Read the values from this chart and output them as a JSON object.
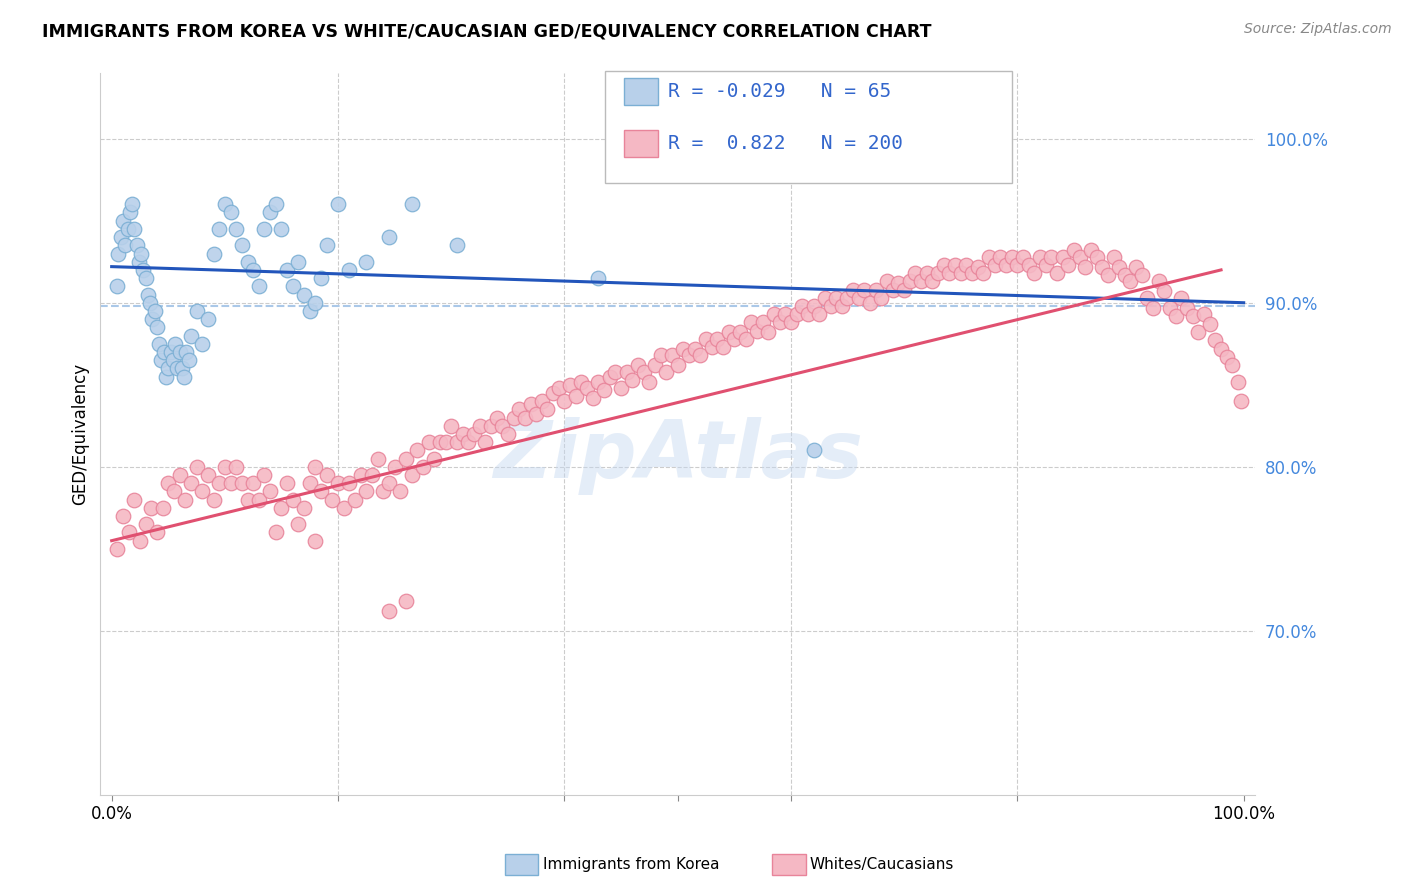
{
  "title": "IMMIGRANTS FROM KOREA VS WHITE/CAUCASIAN GED/EQUIVALENCY CORRELATION CHART",
  "source": "Source: ZipAtlas.com",
  "ylabel": "GED/Equivalency",
  "y_tick_labels": [
    "70.0%",
    "80.0%",
    "90.0%",
    "100.0%"
  ],
  "y_tick_values": [
    0.7,
    0.8,
    0.9,
    1.0
  ],
  "xlim": [
    -0.01,
    1.01
  ],
  "ylim": [
    0.6,
    1.04
  ],
  "legend_entries": [
    {
      "label": "Immigrants from Korea",
      "color_face": "#b8d0ea",
      "color_edge": "#7bafd4",
      "R": "-0.029",
      "N": "65"
    },
    {
      "label": "Whites/Caucasians",
      "color_face": "#f5b8c4",
      "color_edge": "#e8849a",
      "R": "0.822",
      "N": "200"
    }
  ],
  "blue_line": {
    "x_start": 0.0,
    "y_start": 0.922,
    "x_end": 1.0,
    "y_end": 0.9
  },
  "pink_line": {
    "x_start": 0.0,
    "y_start": 0.755,
    "x_end": 0.98,
    "y_end": 0.92
  },
  "dashed_line_y": 0.898,
  "blue_scatter": [
    [
      0.005,
      0.91
    ],
    [
      0.006,
      0.93
    ],
    [
      0.008,
      0.94
    ],
    [
      0.01,
      0.95
    ],
    [
      0.012,
      0.935
    ],
    [
      0.014,
      0.945
    ],
    [
      0.016,
      0.955
    ],
    [
      0.018,
      0.96
    ],
    [
      0.02,
      0.945
    ],
    [
      0.022,
      0.935
    ],
    [
      0.024,
      0.925
    ],
    [
      0.026,
      0.93
    ],
    [
      0.028,
      0.92
    ],
    [
      0.03,
      0.915
    ],
    [
      0.032,
      0.905
    ],
    [
      0.034,
      0.9
    ],
    [
      0.036,
      0.89
    ],
    [
      0.038,
      0.895
    ],
    [
      0.04,
      0.885
    ],
    [
      0.042,
      0.875
    ],
    [
      0.044,
      0.865
    ],
    [
      0.046,
      0.87
    ],
    [
      0.048,
      0.855
    ],
    [
      0.05,
      0.86
    ],
    [
      0.052,
      0.87
    ],
    [
      0.054,
      0.865
    ],
    [
      0.056,
      0.875
    ],
    [
      0.058,
      0.86
    ],
    [
      0.06,
      0.87
    ],
    [
      0.062,
      0.86
    ],
    [
      0.064,
      0.855
    ],
    [
      0.066,
      0.87
    ],
    [
      0.068,
      0.865
    ],
    [
      0.07,
      0.88
    ],
    [
      0.075,
      0.895
    ],
    [
      0.08,
      0.875
    ],
    [
      0.085,
      0.89
    ],
    [
      0.09,
      0.93
    ],
    [
      0.095,
      0.945
    ],
    [
      0.1,
      0.96
    ],
    [
      0.105,
      0.955
    ],
    [
      0.11,
      0.945
    ],
    [
      0.115,
      0.935
    ],
    [
      0.12,
      0.925
    ],
    [
      0.125,
      0.92
    ],
    [
      0.13,
      0.91
    ],
    [
      0.135,
      0.945
    ],
    [
      0.14,
      0.955
    ],
    [
      0.145,
      0.96
    ],
    [
      0.15,
      0.945
    ],
    [
      0.155,
      0.92
    ],
    [
      0.16,
      0.91
    ],
    [
      0.165,
      0.925
    ],
    [
      0.17,
      0.905
    ],
    [
      0.175,
      0.895
    ],
    [
      0.18,
      0.9
    ],
    [
      0.185,
      0.915
    ],
    [
      0.19,
      0.935
    ],
    [
      0.2,
      0.96
    ],
    [
      0.21,
      0.92
    ],
    [
      0.225,
      0.925
    ],
    [
      0.245,
      0.94
    ],
    [
      0.265,
      0.96
    ],
    [
      0.305,
      0.935
    ],
    [
      0.43,
      0.915
    ],
    [
      0.62,
      0.81
    ]
  ],
  "pink_scatter": [
    [
      0.005,
      0.75
    ],
    [
      0.01,
      0.77
    ],
    [
      0.015,
      0.76
    ],
    [
      0.02,
      0.78
    ],
    [
      0.025,
      0.755
    ],
    [
      0.03,
      0.765
    ],
    [
      0.035,
      0.775
    ],
    [
      0.04,
      0.76
    ],
    [
      0.045,
      0.775
    ],
    [
      0.05,
      0.79
    ],
    [
      0.055,
      0.785
    ],
    [
      0.06,
      0.795
    ],
    [
      0.065,
      0.78
    ],
    [
      0.07,
      0.79
    ],
    [
      0.075,
      0.8
    ],
    [
      0.08,
      0.785
    ],
    [
      0.085,
      0.795
    ],
    [
      0.09,
      0.78
    ],
    [
      0.095,
      0.79
    ],
    [
      0.1,
      0.8
    ],
    [
      0.105,
      0.79
    ],
    [
      0.11,
      0.8
    ],
    [
      0.115,
      0.79
    ],
    [
      0.12,
      0.78
    ],
    [
      0.125,
      0.79
    ],
    [
      0.13,
      0.78
    ],
    [
      0.135,
      0.795
    ],
    [
      0.14,
      0.785
    ],
    [
      0.145,
      0.76
    ],
    [
      0.15,
      0.775
    ],
    [
      0.155,
      0.79
    ],
    [
      0.16,
      0.78
    ],
    [
      0.165,
      0.765
    ],
    [
      0.17,
      0.775
    ],
    [
      0.175,
      0.79
    ],
    [
      0.18,
      0.8
    ],
    [
      0.185,
      0.785
    ],
    [
      0.19,
      0.795
    ],
    [
      0.195,
      0.78
    ],
    [
      0.2,
      0.79
    ],
    [
      0.205,
      0.775
    ],
    [
      0.21,
      0.79
    ],
    [
      0.215,
      0.78
    ],
    [
      0.22,
      0.795
    ],
    [
      0.225,
      0.785
    ],
    [
      0.23,
      0.795
    ],
    [
      0.235,
      0.805
    ],
    [
      0.24,
      0.785
    ],
    [
      0.245,
      0.79
    ],
    [
      0.25,
      0.8
    ],
    [
      0.255,
      0.785
    ],
    [
      0.26,
      0.805
    ],
    [
      0.265,
      0.795
    ],
    [
      0.27,
      0.81
    ],
    [
      0.275,
      0.8
    ],
    [
      0.28,
      0.815
    ],
    [
      0.285,
      0.805
    ],
    [
      0.29,
      0.815
    ],
    [
      0.295,
      0.815
    ],
    [
      0.3,
      0.825
    ],
    [
      0.305,
      0.815
    ],
    [
      0.31,
      0.82
    ],
    [
      0.315,
      0.815
    ],
    [
      0.32,
      0.82
    ],
    [
      0.325,
      0.825
    ],
    [
      0.33,
      0.815
    ],
    [
      0.335,
      0.825
    ],
    [
      0.34,
      0.83
    ],
    [
      0.345,
      0.825
    ],
    [
      0.35,
      0.82
    ],
    [
      0.355,
      0.83
    ],
    [
      0.36,
      0.835
    ],
    [
      0.365,
      0.83
    ],
    [
      0.37,
      0.838
    ],
    [
      0.375,
      0.832
    ],
    [
      0.38,
      0.84
    ],
    [
      0.385,
      0.835
    ],
    [
      0.39,
      0.845
    ],
    [
      0.395,
      0.848
    ],
    [
      0.4,
      0.84
    ],
    [
      0.405,
      0.85
    ],
    [
      0.41,
      0.843
    ],
    [
      0.415,
      0.852
    ],
    [
      0.42,
      0.848
    ],
    [
      0.425,
      0.842
    ],
    [
      0.43,
      0.852
    ],
    [
      0.435,
      0.847
    ],
    [
      0.44,
      0.855
    ],
    [
      0.445,
      0.858
    ],
    [
      0.45,
      0.848
    ],
    [
      0.455,
      0.858
    ],
    [
      0.46,
      0.853
    ],
    [
      0.465,
      0.862
    ],
    [
      0.47,
      0.858
    ],
    [
      0.475,
      0.852
    ],
    [
      0.48,
      0.862
    ],
    [
      0.485,
      0.868
    ],
    [
      0.49,
      0.858
    ],
    [
      0.495,
      0.868
    ],
    [
      0.5,
      0.862
    ],
    [
      0.505,
      0.872
    ],
    [
      0.51,
      0.868
    ],
    [
      0.515,
      0.872
    ],
    [
      0.52,
      0.868
    ],
    [
      0.525,
      0.878
    ],
    [
      0.53,
      0.873
    ],
    [
      0.535,
      0.878
    ],
    [
      0.54,
      0.873
    ],
    [
      0.545,
      0.882
    ],
    [
      0.55,
      0.878
    ],
    [
      0.555,
      0.882
    ],
    [
      0.56,
      0.878
    ],
    [
      0.565,
      0.888
    ],
    [
      0.57,
      0.883
    ],
    [
      0.575,
      0.888
    ],
    [
      0.58,
      0.882
    ],
    [
      0.585,
      0.893
    ],
    [
      0.59,
      0.888
    ],
    [
      0.595,
      0.893
    ],
    [
      0.6,
      0.888
    ],
    [
      0.605,
      0.893
    ],
    [
      0.61,
      0.898
    ],
    [
      0.615,
      0.893
    ],
    [
      0.62,
      0.898
    ],
    [
      0.625,
      0.893
    ],
    [
      0.63,
      0.903
    ],
    [
      0.635,
      0.898
    ],
    [
      0.64,
      0.903
    ],
    [
      0.645,
      0.898
    ],
    [
      0.65,
      0.903
    ],
    [
      0.655,
      0.908
    ],
    [
      0.66,
      0.903
    ],
    [
      0.665,
      0.908
    ],
    [
      0.67,
      0.9
    ],
    [
      0.675,
      0.908
    ],
    [
      0.68,
      0.903
    ],
    [
      0.685,
      0.913
    ],
    [
      0.69,
      0.908
    ],
    [
      0.695,
      0.912
    ],
    [
      0.7,
      0.908
    ],
    [
      0.705,
      0.913
    ],
    [
      0.71,
      0.918
    ],
    [
      0.715,
      0.913
    ],
    [
      0.72,
      0.918
    ],
    [
      0.725,
      0.913
    ],
    [
      0.73,
      0.918
    ],
    [
      0.735,
      0.923
    ],
    [
      0.74,
      0.918
    ],
    [
      0.745,
      0.923
    ],
    [
      0.75,
      0.918
    ],
    [
      0.755,
      0.923
    ],
    [
      0.76,
      0.918
    ],
    [
      0.765,
      0.922
    ],
    [
      0.77,
      0.918
    ],
    [
      0.775,
      0.928
    ],
    [
      0.78,
      0.923
    ],
    [
      0.785,
      0.928
    ],
    [
      0.79,
      0.923
    ],
    [
      0.795,
      0.928
    ],
    [
      0.8,
      0.923
    ],
    [
      0.805,
      0.928
    ],
    [
      0.81,
      0.923
    ],
    [
      0.815,
      0.918
    ],
    [
      0.82,
      0.928
    ],
    [
      0.825,
      0.923
    ],
    [
      0.83,
      0.928
    ],
    [
      0.835,
      0.918
    ],
    [
      0.84,
      0.928
    ],
    [
      0.845,
      0.923
    ],
    [
      0.85,
      0.932
    ],
    [
      0.855,
      0.928
    ],
    [
      0.86,
      0.922
    ],
    [
      0.865,
      0.932
    ],
    [
      0.87,
      0.928
    ],
    [
      0.875,
      0.922
    ],
    [
      0.88,
      0.917
    ],
    [
      0.885,
      0.928
    ],
    [
      0.89,
      0.922
    ],
    [
      0.895,
      0.917
    ],
    [
      0.9,
      0.913
    ],
    [
      0.905,
      0.922
    ],
    [
      0.91,
      0.917
    ],
    [
      0.915,
      0.903
    ],
    [
      0.92,
      0.897
    ],
    [
      0.925,
      0.913
    ],
    [
      0.93,
      0.907
    ],
    [
      0.935,
      0.897
    ],
    [
      0.94,
      0.892
    ],
    [
      0.945,
      0.903
    ],
    [
      0.95,
      0.897
    ],
    [
      0.955,
      0.892
    ],
    [
      0.96,
      0.882
    ],
    [
      0.965,
      0.893
    ],
    [
      0.97,
      0.887
    ],
    [
      0.975,
      0.877
    ],
    [
      0.98,
      0.872
    ],
    [
      0.985,
      0.867
    ],
    [
      0.99,
      0.862
    ],
    [
      0.995,
      0.852
    ],
    [
      0.998,
      0.84
    ],
    [
      0.18,
      0.755
    ],
    [
      0.245,
      0.712
    ],
    [
      0.26,
      0.718
    ]
  ]
}
